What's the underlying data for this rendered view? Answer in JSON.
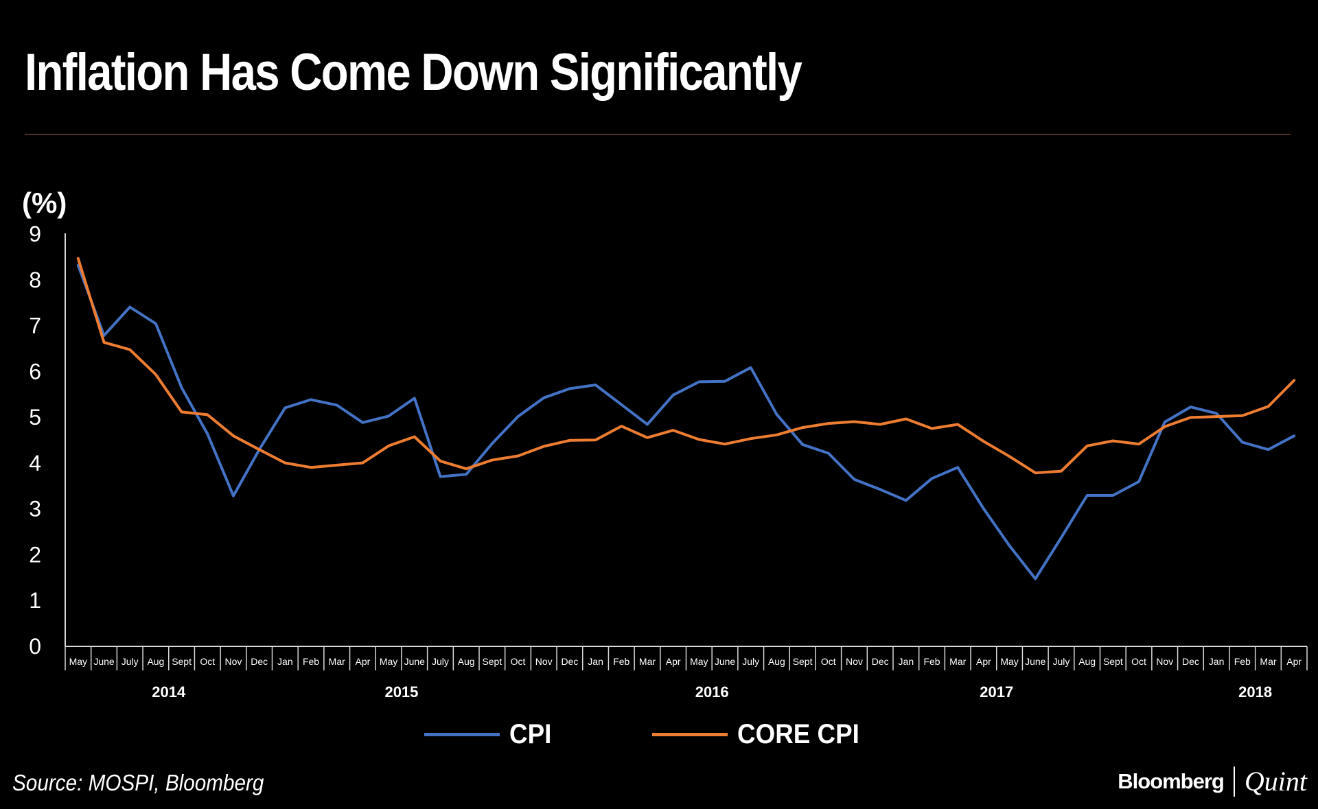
{
  "header": {
    "title": "Inflation Has Come Down Significantly",
    "unit": "(%)"
  },
  "footer": {
    "source": "Source: MOSPI, Bloomberg",
    "brand_primary": "Bloomberg",
    "brand_secondary": "Quint"
  },
  "colors": {
    "cpi": "#4472c4",
    "core": "#ed7d31",
    "axis": "#d9d9d9",
    "rule": "#a0653a"
  },
  "chart_data": {
    "type": "line",
    "title": "Inflation Has Come Down Significantly",
    "ylabel": "(%)",
    "xlabel": "",
    "ylim": [
      0,
      9
    ],
    "yticks": [
      "0",
      "1",
      "2",
      "3",
      "4",
      "5",
      "6",
      "7",
      "8",
      "9"
    ],
    "categories": [
      "May",
      "June",
      "July",
      "Aug",
      "Sept",
      "Oct",
      "Nov",
      "Dec",
      "Jan",
      "Feb",
      "Mar",
      "Apr",
      "May",
      "June",
      "July",
      "Aug",
      "Sept",
      "Oct",
      "Nov",
      "Dec",
      "Jan",
      "Feb",
      "Mar",
      "Apr",
      "May",
      "June",
      "July",
      "Aug",
      "Sept",
      "Oct",
      "Nov",
      "Dec",
      "Jan",
      "Feb",
      "Mar",
      "Apr",
      "May",
      "June",
      "July",
      "Aug",
      "Sept",
      "Oct",
      "Nov",
      "Dec",
      "Jan",
      "Feb",
      "Mar",
      "Apr"
    ],
    "years": [
      {
        "label": "2014",
        "index": 3.5
      },
      {
        "label": "2015",
        "index": 12.5
      },
      {
        "label": "2016",
        "index": 24.5
      },
      {
        "label": "2017",
        "index": 35.5
      },
      {
        "label": "2018",
        "index": 45.5
      }
    ],
    "series": [
      {
        "name": "CPI",
        "values": [
          8.3,
          6.77,
          7.39,
          7.03,
          5.63,
          4.62,
          3.27,
          4.28,
          5.19,
          5.37,
          5.25,
          4.87,
          5.01,
          5.4,
          3.69,
          3.74,
          4.41,
          5.0,
          5.41,
          5.61,
          5.69,
          5.26,
          4.83,
          5.47,
          5.76,
          5.77,
          6.07,
          5.05,
          4.39,
          4.2,
          3.63,
          3.41,
          3.17,
          3.65,
          3.89,
          2.99,
          2.18,
          1.46,
          2.36,
          3.28,
          3.28,
          3.58,
          4.88,
          5.21,
          5.07,
          4.44,
          4.28,
          4.58
        ]
      },
      {
        "name": "CORE CPI",
        "values": [
          8.45,
          6.62,
          6.46,
          5.92,
          5.1,
          5.04,
          4.58,
          4.28,
          3.99,
          3.89,
          3.94,
          3.99,
          4.36,
          4.56,
          4.03,
          3.86,
          4.05,
          4.14,
          4.35,
          4.48,
          4.49,
          4.79,
          4.54,
          4.7,
          4.5,
          4.4,
          4.52,
          4.6,
          4.76,
          4.85,
          4.89,
          4.83,
          4.95,
          4.74,
          4.83,
          4.46,
          4.13,
          3.77,
          3.81,
          4.36,
          4.47,
          4.4,
          4.78,
          4.98,
          5.0,
          5.02,
          5.22,
          5.79
        ]
      }
    ],
    "legend": [
      "CPI",
      "CORE CPI"
    ]
  }
}
